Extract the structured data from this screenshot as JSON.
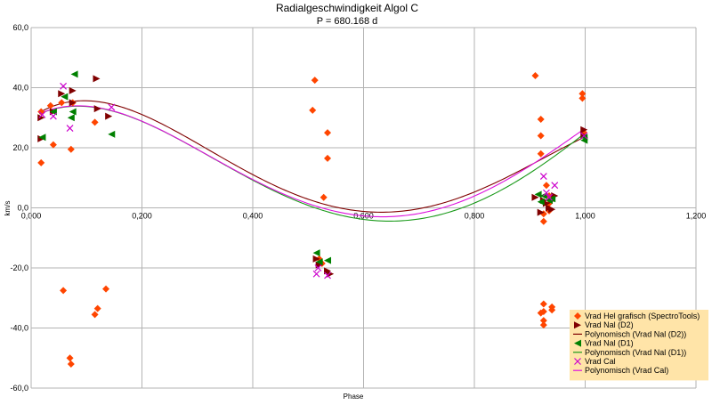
{
  "chart_data": {
    "type": "scatter",
    "title": "Radialgeschwindigkeit Algol C",
    "subtitle": "P = 680.168 d",
    "xlabel": "Phase",
    "ylabel": "km/s",
    "xlim": [
      0,
      1.2
    ],
    "ylim": [
      -60,
      60
    ],
    "x_ticks": [
      "0,000",
      "0,200",
      "0,400",
      "0,600",
      "0,800",
      "1,000",
      "1,200"
    ],
    "y_ticks": [
      "60,0",
      "40,0",
      "20,0",
      "0,0",
      "-20,0",
      "-40,0",
      "-60,0"
    ],
    "grid": true,
    "legend_position": "bottom-right",
    "series": [
      {
        "name": "Vrad Hel grafisch (SpectroTools)",
        "kind": "points",
        "marker": "diamond",
        "color": "#ff4500",
        "points": [
          [
            0.018,
            32
          ],
          [
            0.018,
            15
          ],
          [
            0.035,
            34
          ],
          [
            0.04,
            21
          ],
          [
            0.055,
            35
          ],
          [
            0.058,
            -27.5
          ],
          [
            0.07,
            -50
          ],
          [
            0.072,
            -52
          ],
          [
            0.072,
            19.5
          ],
          [
            0.075,
            35
          ],
          [
            0.115,
            -35.5
          ],
          [
            0.12,
            -33.5
          ],
          [
            0.115,
            28.5
          ],
          [
            0.135,
            -27
          ],
          [
            0.508,
            32.5
          ],
          [
            0.512,
            42.5
          ],
          [
            0.528,
            3.5
          ],
          [
            0.535,
            25
          ],
          [
            0.535,
            16.5
          ],
          [
            0.52,
            -17
          ],
          [
            0.525,
            -18.5
          ],
          [
            0.91,
            44
          ],
          [
            0.92,
            -35
          ],
          [
            0.92,
            29.5
          ],
          [
            0.92,
            24
          ],
          [
            0.925,
            -32
          ],
          [
            0.925,
            -34.5
          ],
          [
            0.925,
            -37.5
          ],
          [
            0.925,
            -39
          ],
          [
            0.92,
            18
          ],
          [
            0.93,
            7.5
          ],
          [
            0.935,
            4
          ],
          [
            0.935,
            1.5
          ],
          [
            0.935,
            -1
          ],
          [
            0.94,
            -34
          ],
          [
            0.94,
            -33
          ],
          [
            0.925,
            -2
          ],
          [
            0.925,
            -4.5
          ],
          [
            0.995,
            38
          ],
          [
            0.995,
            36.5
          ],
          [
            0.998,
            25
          ]
        ]
      },
      {
        "name": "Vrad Nal (D2)",
        "kind": "points",
        "marker": "triangle-right",
        "color": "#800000",
        "points": [
          [
            0.018,
            30
          ],
          [
            0.018,
            23
          ],
          [
            0.04,
            32
          ],
          [
            0.055,
            38
          ],
          [
            0.075,
            39
          ],
          [
            0.075,
            35
          ],
          [
            0.118,
            43
          ],
          [
            0.12,
            33
          ],
          [
            0.14,
            30.5
          ],
          [
            0.515,
            -17
          ],
          [
            0.52,
            -19
          ],
          [
            0.535,
            -21
          ],
          [
            0.54,
            -22
          ],
          [
            0.91,
            3.5
          ],
          [
            0.92,
            -1.5
          ],
          [
            0.925,
            2.5
          ],
          [
            0.93,
            1.5
          ],
          [
            0.935,
            0
          ],
          [
            0.94,
            2.5
          ],
          [
            0.94,
            -0.5
          ],
          [
            0.945,
            4
          ],
          [
            0.998,
            24
          ],
          [
            0.998,
            26
          ]
        ]
      },
      {
        "name": "Polynomisch (Vrad Nal (D2))",
        "kind": "curve",
        "color": "#800000",
        "coeffs": [
          30,
          128,
          -826.13,
          1154.56,
          -462.75
        ]
      },
      {
        "name": "Vrad Nal (D1)",
        "kind": "points",
        "marker": "triangle-left",
        "color": "#008000",
        "points": [
          [
            0.02,
            23.5
          ],
          [
            0.04,
            32
          ],
          [
            0.06,
            37
          ],
          [
            0.072,
            30
          ],
          [
            0.075,
            32
          ],
          [
            0.078,
            44.5
          ],
          [
            0.145,
            24.5
          ],
          [
            0.515,
            -15
          ],
          [
            0.52,
            -18
          ],
          [
            0.535,
            -17.5
          ],
          [
            0.915,
            4.5
          ],
          [
            0.92,
            2
          ],
          [
            0.925,
            4
          ],
          [
            0.935,
            2.5
          ],
          [
            0.94,
            3
          ],
          [
            0.998,
            22.5
          ],
          [
            0.998,
            23.5
          ]
        ]
      },
      {
        "name": "Polynomisch (Vrad Nal (D1))",
        "kind": "curve",
        "color": "#1a9a1a",
        "coeffs": [
          30,
          97,
          -685.34,
          915.24,
          -332.0
        ]
      },
      {
        "name": "Vrad Cal",
        "kind": "points",
        "marker": "x",
        "color": "#cc00cc",
        "points": [
          [
            0.02,
            31
          ],
          [
            0.04,
            30.5
          ],
          [
            0.058,
            40.5
          ],
          [
            0.07,
            26.5
          ],
          [
            0.145,
            33.5
          ],
          [
            0.515,
            -22
          ],
          [
            0.518,
            -20
          ],
          [
            0.535,
            -22.5
          ],
          [
            0.925,
            10.5
          ],
          [
            0.93,
            5
          ],
          [
            0.935,
            3.5
          ],
          [
            0.945,
            7.5
          ],
          [
            0.998,
            24
          ]
        ]
      },
      {
        "name": "Polynomisch (Vrad Cal)",
        "kind": "curve",
        "color": "#dd11dd",
        "coeffs": [
          30,
          100,
          -709.3,
          974.06,
          -368.26
        ]
      }
    ]
  }
}
